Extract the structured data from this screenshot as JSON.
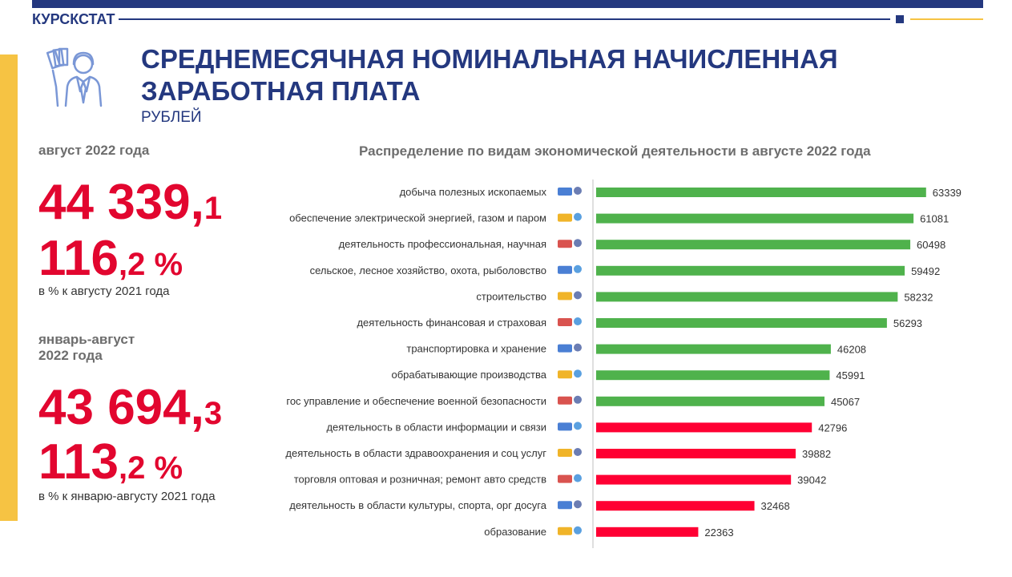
{
  "brand": "КУРСКСТАТ",
  "header": {
    "title": "СРЕДНЕМЕСЯЧНАЯ НОМИНАЛЬНАЯ НАЧИСЛЕННАЯ ЗАРАБОТНАЯ ПЛАТА",
    "unit": "РУБЛЕЙ"
  },
  "summary": {
    "aug": {
      "label": "август 2022 года",
      "value_int": "44 339,",
      "value_dec": "1",
      "pct_int": "116",
      "pct_dec": ",2 %",
      "note": "в % к августу 2021 года"
    },
    "janaug": {
      "label_line1": "январь-август",
      "label_line2": "2022 года",
      "value_int": "43 694,",
      "value_dec": "3",
      "pct_int": "113",
      "pct_dec": ",2 %",
      "note": "в % к январю-августу 2021 года"
    }
  },
  "colors": {
    "brand": "#24387f",
    "accent_red": "#e2062f",
    "accent_yellow": "#f6c343",
    "bar_green": "#4fb24c",
    "bar_red": "#ff0033"
  },
  "chart_data": {
    "type": "bar",
    "orientation": "horizontal",
    "title": "Распределение по видам экономической деятельности в августе 2022 года",
    "categories": [
      "добыча полезных ископаемых",
      "обеспечение электрической энергией,  газом и паром",
      "деятельность профессиональная, научная",
      "сельское, лесное хозяйство, охота, рыболовство",
      "строительство",
      "деятельность финансовая и страховая",
      "транспортировка и хранение",
      "обрабатывающие производства",
      "гос управление и обеспечение военной безопасности",
      "деятельность в области информации и связи",
      "деятельность в области здравоохранения и соц  услуг",
      "торговля оптовая и розничная; ремонт авто средств",
      "деятельность в области культуры, спорта, орг досуга",
      "образование"
    ],
    "values": [
      63339,
      61081,
      60498,
      59492,
      58232,
      56293,
      46208,
      45991,
      45067,
      42796,
      39882,
      39042,
      32468,
      22363
    ],
    "bar_colors": [
      "green",
      "green",
      "green",
      "green",
      "green",
      "green",
      "green",
      "green",
      "green",
      "red",
      "red",
      "red",
      "red",
      "red"
    ],
    "icons": [
      "mining-icon",
      "energy-icon",
      "science-icon",
      "agriculture-icon",
      "construction-icon",
      "finance-icon",
      "transport-icon",
      "manufacturing-icon",
      "military-icon",
      "communication-icon",
      "health-icon",
      "trade-icon",
      "culture-icon",
      "education-icon"
    ],
    "xlim": [
      0,
      70000
    ],
    "grid": false,
    "legend": "none"
  }
}
